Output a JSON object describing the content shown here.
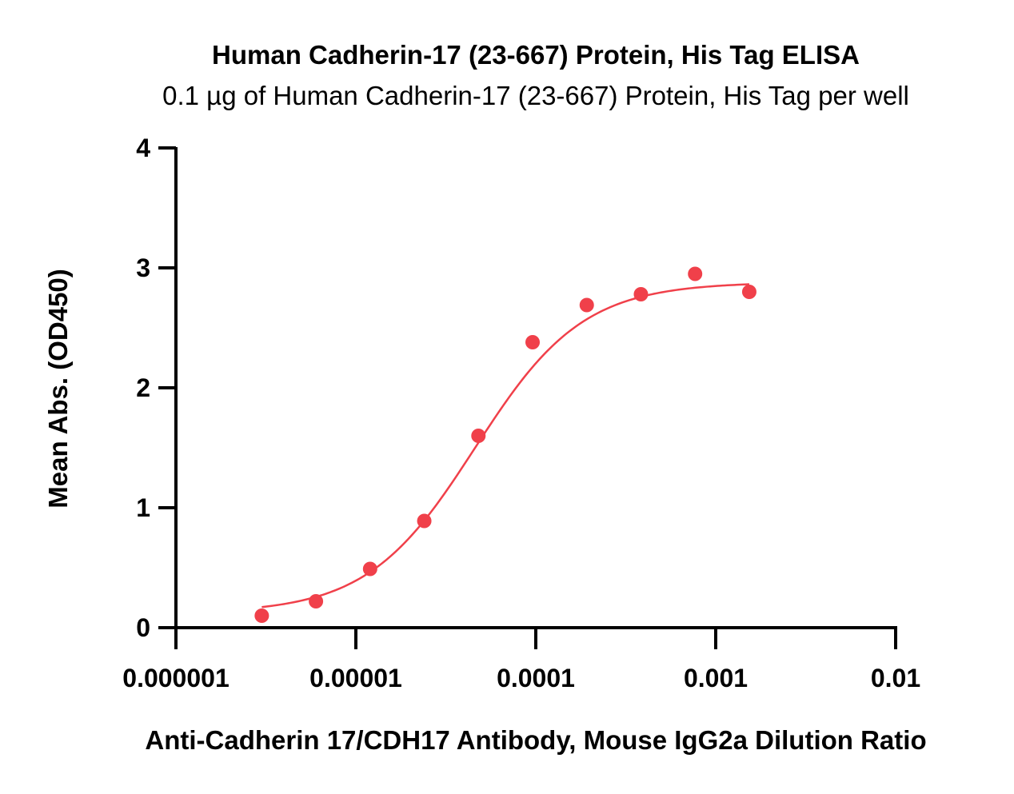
{
  "chart_data": {
    "type": "scatter",
    "title": "Human Cadherin-17 (23-667) Protein, His Tag ELISA",
    "subtitle": "0.1 µg of Human Cadherin-17 (23-667) Protein, His Tag per well",
    "xlabel": "Anti-Cadherin 17/CDH17 Antibody, Mouse IgG2a Dilution Ratio",
    "ylabel": "Mean Abs. (OD450)",
    "x_scale": "log",
    "xlim": [
      1e-06,
      0.01
    ],
    "ylim": [
      0,
      4
    ],
    "x_ticks": [
      1e-06,
      1e-05,
      0.0001,
      0.001,
      0.01
    ],
    "x_tick_labels": [
      "0.000001",
      "0.00001",
      "0.0001",
      "0.001",
      "0.01"
    ],
    "y_ticks": [
      0,
      1,
      2,
      3,
      4
    ],
    "y_tick_labels": [
      "0",
      "1",
      "2",
      "3",
      "4"
    ],
    "grid": false,
    "legend": "none",
    "color": "#f0404a",
    "series": [
      {
        "x": [
          3e-06,
          6e-06,
          1.2e-05,
          2.4e-05,
          4.8e-05,
          9.6e-05,
          0.000192,
          0.000384,
          0.000768,
          0.001536
        ],
        "values": [
          0.1,
          0.22,
          0.49,
          0.89,
          1.6,
          2.38,
          2.69,
          2.78,
          2.95,
          2.8
        ]
      }
    ],
    "fit_curve": {
      "type": "4PL",
      "bottom": 0.12,
      "top": 2.88,
      "ec50": 4.6e-05,
      "hill": 1.45,
      "x_range": [
        3e-06,
        0.001536
      ]
    }
  }
}
